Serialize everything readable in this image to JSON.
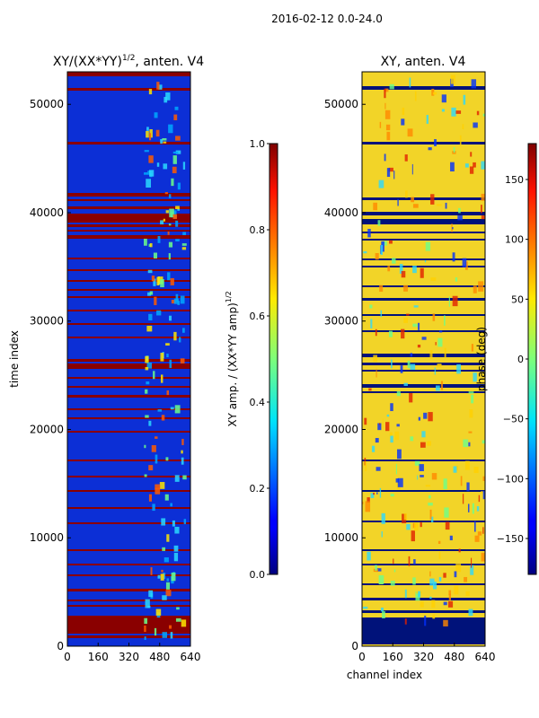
{
  "suptitle": "2016-02-12 0.0-24.0",
  "chart_data": [
    {
      "type": "heatmap",
      "title": "XY/(XX*YY)",
      "title_exponent": "1/2",
      "title_suffix": ", anten. V4",
      "xlabel": "",
      "ylabel": "time index",
      "xlim": [
        0,
        640
      ],
      "ylim": [
        0,
        53000
      ],
      "xticks": [
        0,
        160,
        320,
        480,
        640
      ],
      "yticks": [
        0,
        10000,
        20000,
        30000,
        40000,
        50000
      ],
      "colormap": "jet",
      "colorbar": {
        "label": "XY amp. / (XX*YY amp)",
        "label_exponent": "1/2",
        "range": [
          0.0,
          1.0
        ],
        "ticks": [
          "0.0",
          "0.2",
          "0.4",
          "0.6",
          "0.8",
          "1.0"
        ]
      }
    },
    {
      "type": "heatmap",
      "title": "XY, anten. V4",
      "xlabel": "channel index",
      "ylabel": "",
      "xlim": [
        0,
        640
      ],
      "ylim": [
        0,
        53000
      ],
      "xticks": [
        0,
        160,
        320,
        480,
        640
      ],
      "yticks": [
        0,
        10000,
        20000,
        30000,
        40000,
        50000
      ],
      "colormap": "jet",
      "colorbar": {
        "label": "phase (deg)",
        "range": [
          -180,
          180
        ],
        "ticks": [
          "150",
          "100",
          "50",
          "0",
          "−50",
          "−100",
          "−150"
        ],
        "tick_values": [
          150,
          100,
          50,
          0,
          -50,
          -100,
          -150
        ]
      }
    }
  ]
}
